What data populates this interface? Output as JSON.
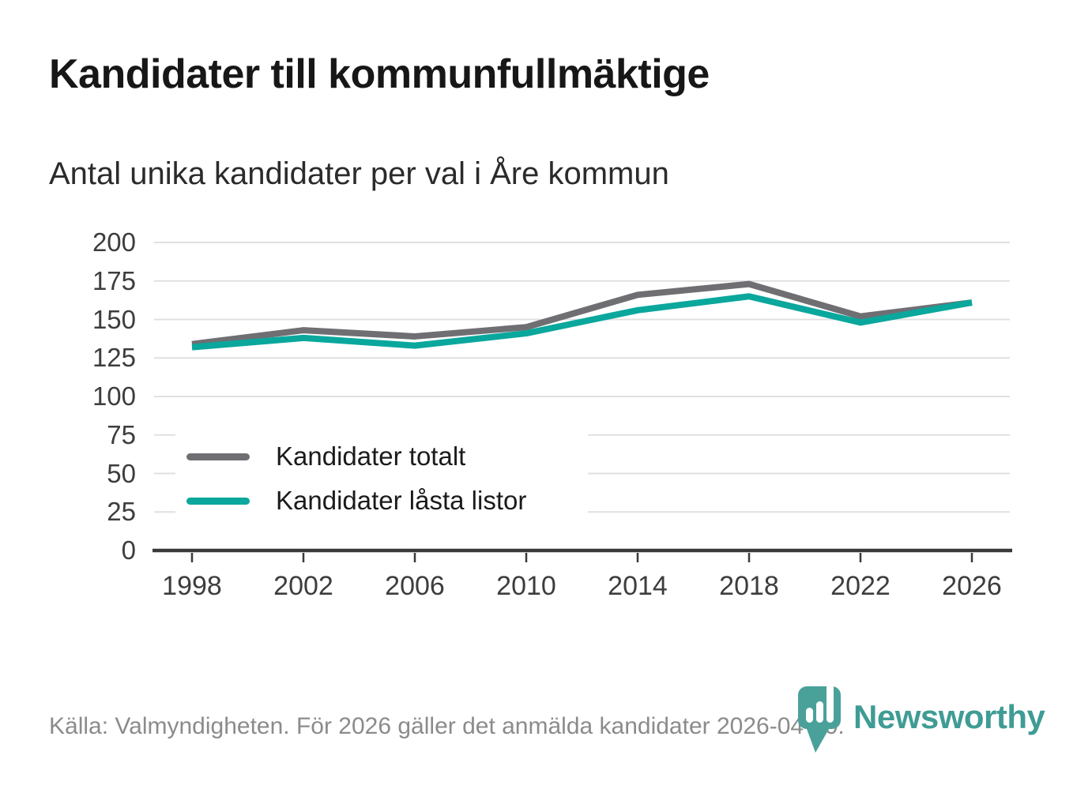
{
  "header": {
    "title": "Kandidater till kommunfullmäktige",
    "subtitle": "Antal unika kandidater per val i Åre kommun"
  },
  "footer": {
    "source": "Källa: Valmyndigheten. För 2026 gäller det anmälda kandidater 2026-04-10.",
    "brand": "Newsworthy"
  },
  "colors": {
    "series_total": "#6f6f73",
    "series_locked": "#0aa79d",
    "gridline": "#e0e0e0",
    "axis": "#3a3a3a",
    "tick_label": "#3d3d3d",
    "brand_teal": "#3f9c95"
  },
  "chart_data": {
    "type": "line",
    "title": "Kandidater till kommunfullmäktige",
    "subtitle": "Antal unika kandidater per val i Åre kommun",
    "x": [
      1998,
      2002,
      2006,
      2010,
      2014,
      2018,
      2022,
      2026
    ],
    "series": [
      {
        "name": "Kandidater totalt",
        "color": "#6f6f73",
        "values": [
          134,
          143,
          139,
          145,
          166,
          173,
          152,
          161
        ]
      },
      {
        "name": "Kandidater låsta listor",
        "color": "#0aa79d",
        "values": [
          132,
          138,
          133,
          141,
          156,
          165,
          148,
          161
        ]
      }
    ],
    "xlabel": "",
    "ylabel": "",
    "ylim": [
      0,
      200
    ],
    "yticks": [
      0,
      25,
      50,
      75,
      100,
      125,
      150,
      175,
      200
    ],
    "grid": "horizontal",
    "legend_position": "inside-left-middle"
  }
}
